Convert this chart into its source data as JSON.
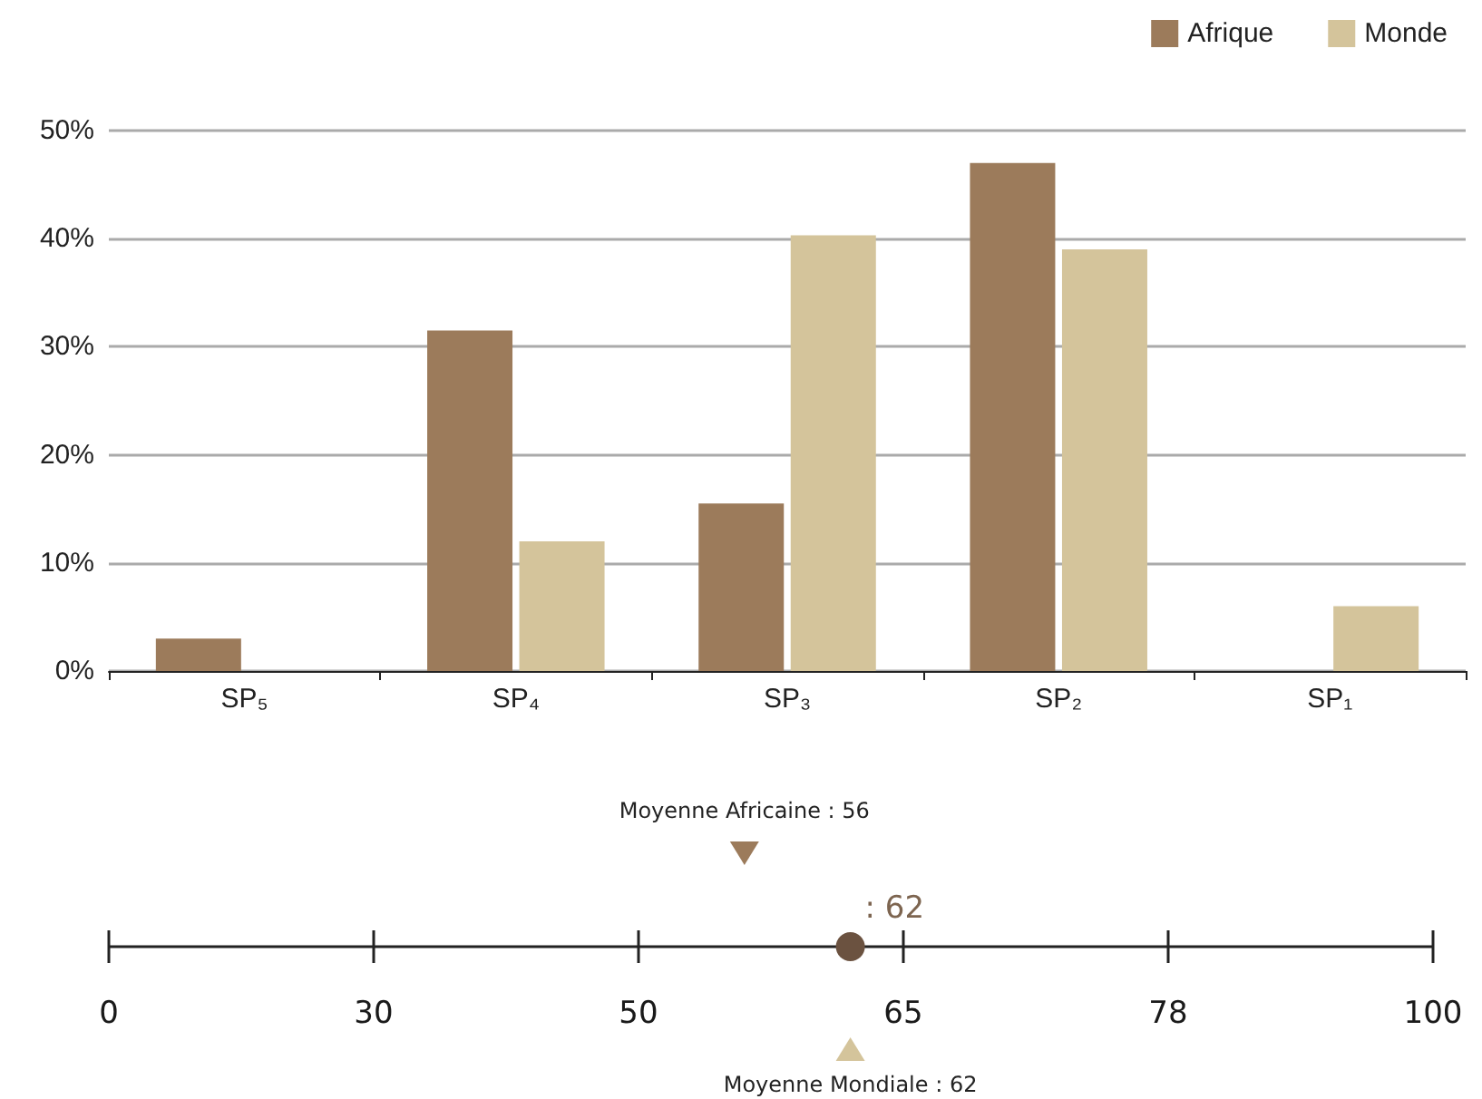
{
  "chart_data": [
    {
      "type": "bar",
      "categories": [
        "SP₅",
        "SP₄",
        "SP₃",
        "SP₂",
        "SP₁"
      ],
      "series": [
        {
          "name": "Afrique",
          "color": "#9c7b5b",
          "values": [
            3,
            31.5,
            15.5,
            47,
            0
          ]
        },
        {
          "name": "Monde",
          "color": "#d4c49b",
          "values": [
            0,
            12,
            40.3,
            39,
            6
          ]
        }
      ],
      "ylim": [
        0,
        50
      ],
      "yticks": [
        {
          "value": 0,
          "label": "0%"
        },
        {
          "value": 10,
          "label": "10%"
        },
        {
          "value": 20,
          "label": "20%"
        },
        {
          "value": 30,
          "label": "30%"
        },
        {
          "value": 40,
          "label": "40%"
        },
        {
          "value": 50,
          "label": "50%"
        }
      ],
      "grid": "y",
      "legend": "top right"
    },
    {
      "type": "other",
      "categories": [
        "0",
        "30",
        "50",
        "65",
        "78",
        "100"
      ],
      "colors": [
        "#9c7b5b",
        "#d4c49b",
        "#6b5240"
      ],
      "annotations": [
        "Moyenne Africaine : 56",
        "Moyenne Mondiale : 62",
        ": 62"
      ]
    }
  ]
}
